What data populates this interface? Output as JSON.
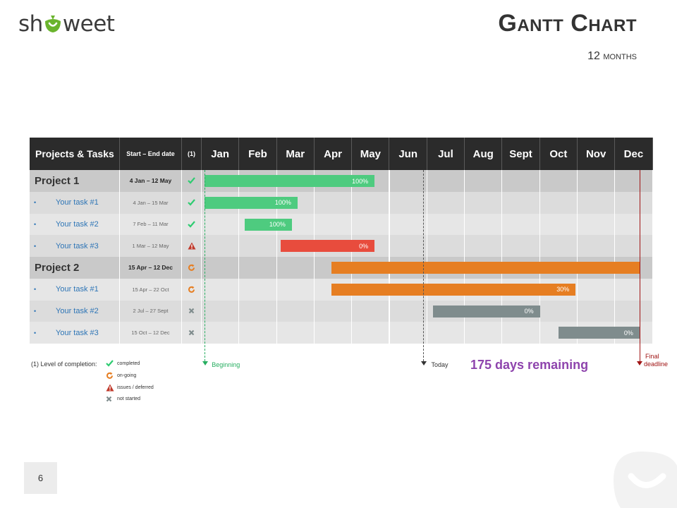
{
  "brand": {
    "logo_text_left": "sh",
    "logo_text_right": "weet"
  },
  "title": "Gantt Chart",
  "subtitle": "12 months",
  "table": {
    "headers": {
      "projects": "Projects & Tasks",
      "dates": "Start – End date",
      "status": "(1)"
    },
    "months": [
      "Jan",
      "Feb",
      "Mar",
      "Apr",
      "May",
      "Jun",
      "Jul",
      "Aug",
      "Sept",
      "Oct",
      "Nov",
      "Dec"
    ],
    "rows": [
      {
        "kind": "project",
        "name": "Project 1",
        "dates": "4 Jan – 12 May",
        "status": "completed",
        "bar": {
          "start": 0.08,
          "end": 4.6,
          "color": "#4ecb7f",
          "label": "100%"
        }
      },
      {
        "kind": "task",
        "name": "Your task #1",
        "dates": "4 Jan – 15 Mar",
        "status": "completed",
        "bar": {
          "start": 0.08,
          "end": 2.55,
          "color": "#4ecb7f",
          "label": "100%"
        }
      },
      {
        "kind": "task",
        "name": "Your task #2",
        "dates": "7 Feb – 11 Mar",
        "status": "completed",
        "bar": {
          "start": 1.15,
          "end": 2.4,
          "color": "#4ecb7f",
          "label": "100%"
        }
      },
      {
        "kind": "task",
        "name": "Your task #3",
        "dates": "1 Mar – 12 May",
        "status": "issues",
        "bar": {
          "start": 2.1,
          "end": 4.6,
          "color": "#e84c3d",
          "label": "0%"
        }
      },
      {
        "kind": "project",
        "name": "Project 2",
        "dates": "15 Apr – 12 Dec",
        "status": "ongoing",
        "bar": {
          "start": 3.45,
          "end": 11.65,
          "color": "#e67e22",
          "label": ""
        }
      },
      {
        "kind": "task",
        "name": "Your task #1",
        "dates": "15 Apr – 22 Oct",
        "status": "ongoing",
        "bar": {
          "start": 3.45,
          "end": 9.95,
          "color": "#e67e22",
          "label": "30%"
        }
      },
      {
        "kind": "task",
        "name": "Your task #2",
        "dates": "2 Jul – 27 Sept",
        "status": "not_started",
        "bar": {
          "start": 6.15,
          "end": 9.0,
          "color": "#7f8c8d",
          "label": "0%"
        }
      },
      {
        "kind": "task",
        "name": "Your task #3",
        "dates": "15 Oct – 12 Dec",
        "status": "not_started",
        "bar": {
          "start": 9.5,
          "end": 11.65,
          "color": "#7f8c8d",
          "label": "0%"
        }
      }
    ]
  },
  "markers": {
    "beginning": {
      "label": "Beginning",
      "month_pos": 0.08,
      "color": "#27ae60"
    },
    "today": {
      "label": "Today",
      "month_pos": 5.9,
      "color": "#333333"
    },
    "final": {
      "label_line1": "Final",
      "label_line2": "deadline",
      "month_pos": 11.65,
      "color": "#a01414"
    }
  },
  "remaining": "175 days remaining",
  "legend": {
    "title": "(1) Level of completion:",
    "items": [
      {
        "icon": "check-icon",
        "label": "completed",
        "color": "#2ecc71"
      },
      {
        "icon": "refresh-icon",
        "label": "on-going",
        "color": "#e67e22"
      },
      {
        "icon": "warning-icon",
        "label": "issues / deferred",
        "color": "#c0392b"
      },
      {
        "icon": "cross-icon",
        "label": "not started",
        "color": "#7f8c8d"
      }
    ]
  },
  "page_number": "6"
}
